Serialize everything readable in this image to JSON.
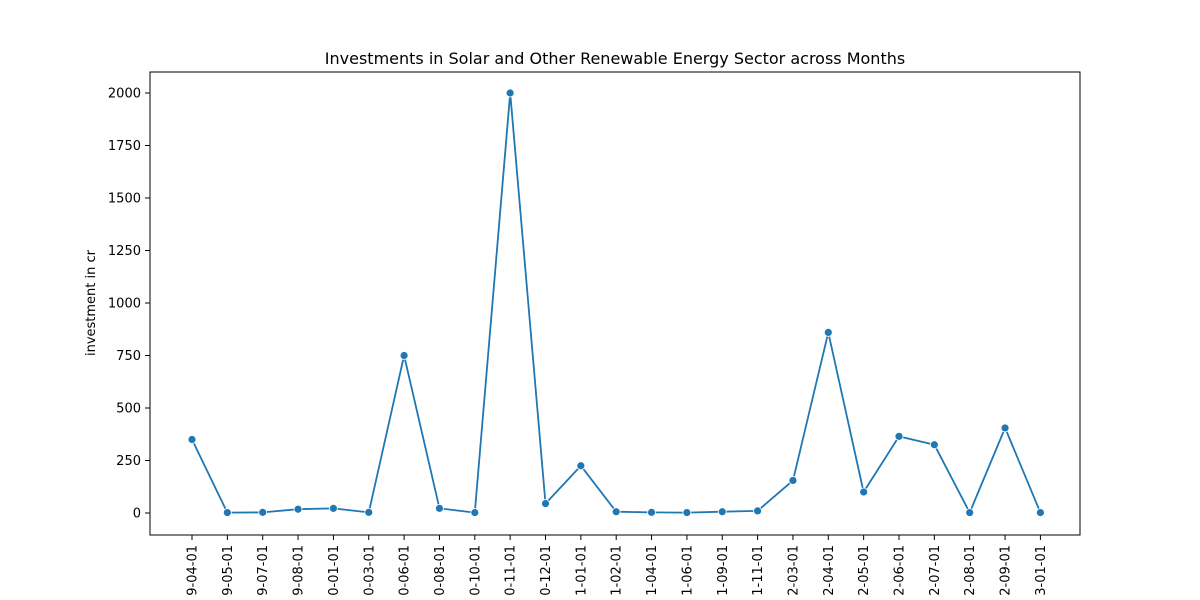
{
  "chart_data": {
    "type": "line",
    "title": "Investments in Solar and Other Renewable Energy Sector across Months",
    "xlabel": "",
    "ylabel": "investment in cr",
    "categories": [
      "9-04-01",
      "9-05-01",
      "9-07-01",
      "9-08-01",
      "0-01-01",
      "0-03-01",
      "0-06-01",
      "0-08-01",
      "0-10-01",
      "0-11-01",
      "0-12-01",
      "1-01-01",
      "1-02-01",
      "1-04-01",
      "1-06-01",
      "1-09-01",
      "1-11-01",
      "2-03-01",
      "2-04-01",
      "2-05-01",
      "2-06-01",
      "2-07-01",
      "2-08-01",
      "2-09-01",
      "3-01-01"
    ],
    "series": [
      {
        "values": [
          350,
          2,
          3,
          18,
          22,
          3,
          750,
          22,
          2,
          2000,
          45,
          225,
          6,
          3,
          2,
          6,
          10,
          155,
          860,
          100,
          365,
          325,
          2,
          405,
          2
        ],
        "color": "#1f77b4"
      }
    ],
    "ylim": [
      -100,
      2100
    ],
    "yticks": [
      0,
      250,
      500,
      750,
      1000,
      1250,
      1500,
      1750,
      2000
    ],
    "grid": false,
    "marker": "circle"
  }
}
